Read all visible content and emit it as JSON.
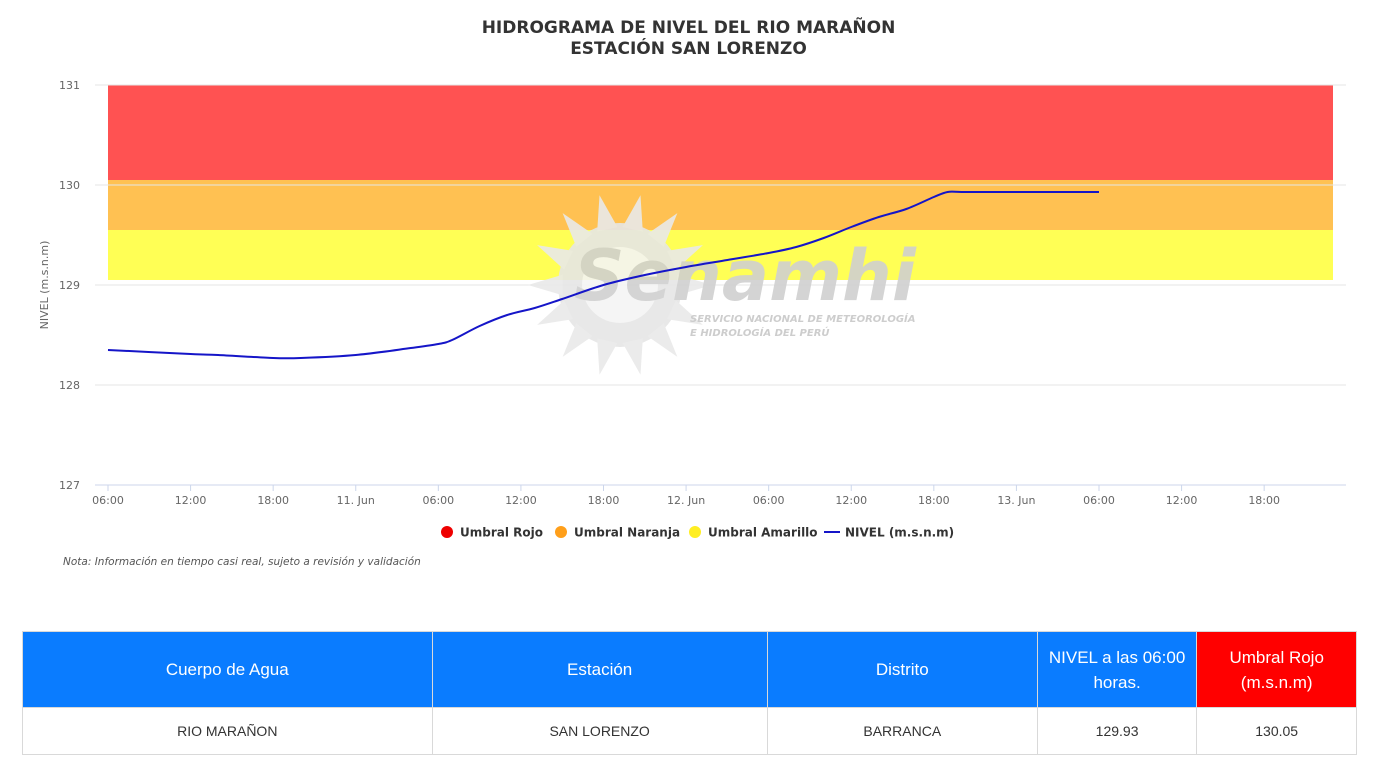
{
  "chart_title": {
    "line1": "HIDROGRAMA DE NIVEL DEL RIO MARAÑON",
    "line2": "ESTACIÓN SAN LORENZO"
  },
  "note": "Nota: Información en tiempo casi real, sujeto a revisión y validación",
  "watermark": {
    "brand": "Senamhi",
    "subtitle_line1": "SERVICIO NACIONAL DE METEOROLOGÍA",
    "subtitle_line2": "E HIDROLOGÍA DEL PERÚ"
  },
  "chart_data": {
    "type": "line",
    "title": "HIDROGRAMA DE NIVEL DEL RIO MARAÑON\nESTACIÓN SAN LORENZO",
    "ylabel": "NIVEL (m.s.n.m)",
    "xlabel": "",
    "ylim": [
      127,
      131
    ],
    "y_ticks": [
      "127",
      "128",
      "129",
      "130",
      "131"
    ],
    "x_ticks": [
      "06:00",
      "12:00",
      "18:00",
      "11. Jun",
      "06:00",
      "12:00",
      "18:00",
      "12. Jun",
      "06:00",
      "12:00",
      "18:00",
      "13. Jun",
      "06:00",
      "12:00",
      "18:00"
    ],
    "x_tick_hours": [
      6,
      12,
      18,
      24,
      30,
      36,
      42,
      48,
      54,
      60,
      66,
      72,
      78,
      84,
      90
    ],
    "x_range_hours": [
      6,
      95
    ],
    "grid": true,
    "legend_position": "bottom-center",
    "bands": [
      {
        "name": "Umbral Rojo",
        "from": 130.05,
        "to": 131,
        "color": "#ff5252"
      },
      {
        "name": "Umbral Naranja",
        "from": 129.55,
        "to": 130.05,
        "color": "#ffc152"
      },
      {
        "name": "Umbral Amarillo",
        "from": 129.05,
        "to": 129.55,
        "color": "#ffff55"
      }
    ],
    "series": [
      {
        "name": "NIVEL (m.s.n.m)",
        "color": "#1515c8",
        "x": [
          6,
          12,
          14,
          18,
          20,
          24,
          28,
          30,
          31,
          33,
          35,
          37,
          39,
          42,
          45,
          48,
          51,
          54,
          56,
          58,
          60,
          62,
          64,
          66,
          67,
          68,
          70,
          72,
          74,
          76,
          78
        ],
        "values": [
          128.35,
          128.31,
          128.3,
          128.27,
          128.27,
          128.3,
          128.37,
          128.41,
          128.45,
          128.59,
          128.7,
          128.77,
          128.86,
          129.0,
          129.1,
          129.18,
          129.25,
          129.32,
          129.38,
          129.47,
          129.58,
          129.68,
          129.76,
          129.88,
          129.93,
          129.93,
          129.93,
          129.93,
          129.93,
          129.93,
          129.93
        ]
      }
    ],
    "legend": [
      {
        "label": "Umbral Rojo",
        "color": "#ee0000",
        "shape": "circle"
      },
      {
        "label": "Umbral Naranja",
        "color": "#ff9f1a",
        "shape": "circle"
      },
      {
        "label": "Umbral Amarillo",
        "color": "#ffee22",
        "shape": "circle"
      },
      {
        "label": "NIVEL (m.s.n.m)",
        "color": "#1515c8",
        "shape": "line"
      }
    ]
  },
  "table": {
    "headers": [
      "Cuerpo de Agua",
      "Estación",
      "Distrito",
      "NIVEL a las 06:00 horas.",
      "Umbral Rojo (m.s.n.m)"
    ],
    "rows": [
      [
        "RIO MARAÑON",
        "SAN LORENZO",
        "BARRANCA",
        "129.93",
        "130.05"
      ]
    ]
  }
}
